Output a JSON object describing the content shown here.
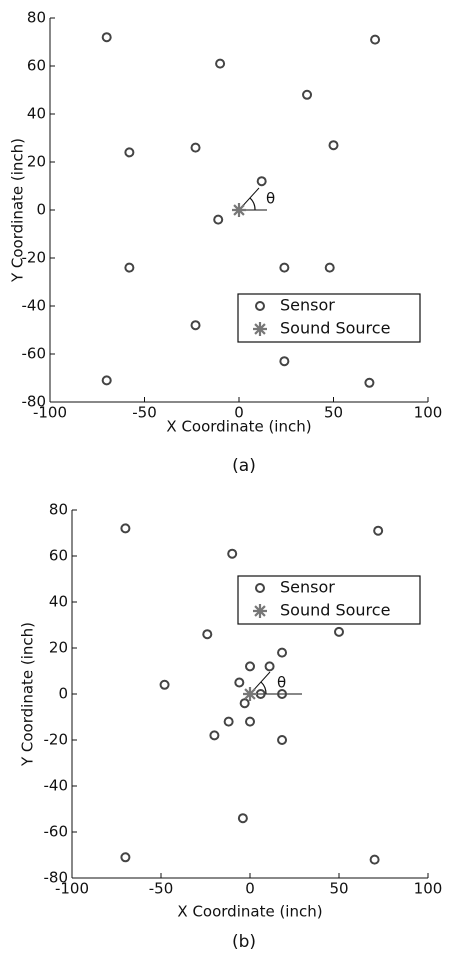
{
  "chart_data": [
    {
      "type": "scatter",
      "caption": "(a)",
      "xlabel": "X Coordinate (inch)",
      "ylabel": "Y Coordinate (inch)",
      "annotation": "θ",
      "legend": "lower right",
      "xlim": [
        -100,
        100
      ],
      "ylim": [
        -80,
        80
      ],
      "xticks": [
        -100,
        -50,
        0,
        50,
        100
      ],
      "yticks": [
        -80,
        -60,
        -40,
        -20,
        0,
        20,
        40,
        60,
        80
      ],
      "series": [
        {
          "name": "Sensor",
          "marker": "o",
          "color": "#444444",
          "x": [
            -70,
            -10,
            72,
            36,
            -58,
            -23,
            50,
            12,
            -11,
            -58,
            24,
            48,
            -23,
            24,
            -70,
            69
          ],
          "values": [
            72,
            61,
            71,
            48,
            24,
            26,
            27,
            12,
            -4,
            -24,
            -24,
            -24,
            -48,
            -63,
            -71,
            -72
          ]
        },
        {
          "name": "Sound Source",
          "marker": "*",
          "color": "#777777",
          "x": [
            0
          ],
          "values": [
            0
          ]
        }
      ]
    },
    {
      "type": "scatter",
      "caption": "(b)",
      "xlabel": "X Coordinate (inch)",
      "ylabel": "Y Coordinate (inch)",
      "annotation": "θ",
      "legend": "upper right",
      "xlim": [
        -100,
        100
      ],
      "ylim": [
        -80,
        80
      ],
      "xticks": [
        -100,
        -50,
        0,
        50,
        100
      ],
      "yticks": [
        -80,
        -60,
        -40,
        -20,
        0,
        20,
        40,
        60,
        80
      ],
      "series": [
        {
          "name": "Sensor",
          "marker": "o",
          "color": "#444444",
          "x": [
            -70,
            -10,
            72,
            -24,
            50,
            -48,
            0,
            11,
            18,
            -6,
            -3,
            6,
            18,
            -12,
            0,
            -20,
            18,
            -4,
            -70,
            70
          ],
          "values": [
            72,
            61,
            71,
            26,
            27,
            4,
            12,
            12,
            18,
            5,
            -4,
            0,
            0,
            -12,
            -12,
            -18,
            -20,
            -54,
            -71,
            -72
          ]
        },
        {
          "name": "Sound Source",
          "marker": "*",
          "color": "#777777",
          "x": [
            0
          ],
          "values": [
            0
          ]
        }
      ]
    }
  ]
}
